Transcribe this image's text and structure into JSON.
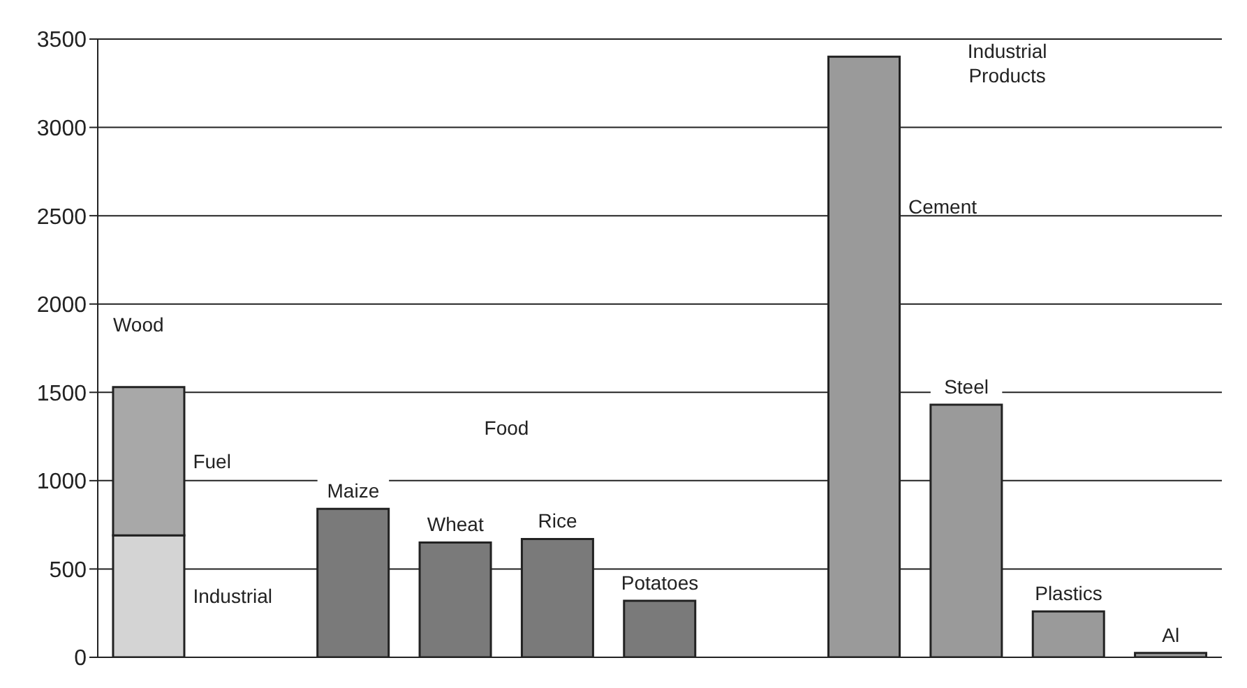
{
  "chart_data": {
    "type": "bar",
    "stacked": true,
    "categories": [
      null,
      null,
      null,
      null,
      null,
      null,
      null,
      null,
      null,
      null,
      null
    ],
    "series": [
      {
        "name": "Industrial",
        "color": "#d4d4d4",
        "values": [
          690,
          null,
          null,
          null,
          null,
          null,
          null,
          null,
          null,
          null,
          null
        ]
      },
      {
        "name": "Fuel",
        "color": "#a8a8a8",
        "values": [
          840,
          null,
          null,
          null,
          null,
          null,
          null,
          null,
          null,
          null,
          null
        ]
      },
      {
        "name": "Maize",
        "color": "#7a7a7a",
        "values": [
          null,
          null,
          840,
          null,
          null,
          null,
          null,
          null,
          null,
          null,
          null
        ]
      },
      {
        "name": "Wheat",
        "color": "#7a7a7a",
        "values": [
          null,
          null,
          null,
          650,
          null,
          null,
          null,
          null,
          null,
          null,
          null
        ]
      },
      {
        "name": "Rice",
        "color": "#7a7a7a",
        "values": [
          null,
          null,
          null,
          null,
          670,
          null,
          null,
          null,
          null,
          null,
          null
        ]
      },
      {
        "name": "Potatoes",
        "color": "#7a7a7a",
        "values": [
          null,
          null,
          null,
          null,
          null,
          320,
          null,
          null,
          null,
          null,
          null
        ]
      },
      {
        "name": "Cement",
        "color": "#9a9a9a",
        "values": [
          null,
          null,
          null,
          null,
          null,
          null,
          null,
          3400,
          null,
          null,
          null
        ]
      },
      {
        "name": "Steel",
        "color": "#9a9a9a",
        "values": [
          null,
          null,
          null,
          null,
          null,
          null,
          null,
          null,
          1430,
          null,
          null
        ]
      },
      {
        "name": "Plastics",
        "color": "#9a9a9a",
        "values": [
          null,
          null,
          null,
          null,
          null,
          null,
          null,
          null,
          null,
          260,
          null
        ]
      },
      {
        "name": "Al",
        "color": "#9a9a9a",
        "values": [
          null,
          null,
          null,
          null,
          null,
          null,
          null,
          null,
          null,
          null,
          25
        ]
      }
    ],
    "annotations": [
      "Wood",
      "Food",
      "Industrial Products"
    ],
    "ylim": [
      0,
      3500
    ],
    "yticks": [
      0,
      500,
      1000,
      1500,
      2000,
      2500,
      3000,
      3500
    ],
    "grid": "y",
    "legend": false,
    "tick_labels": "y"
  }
}
